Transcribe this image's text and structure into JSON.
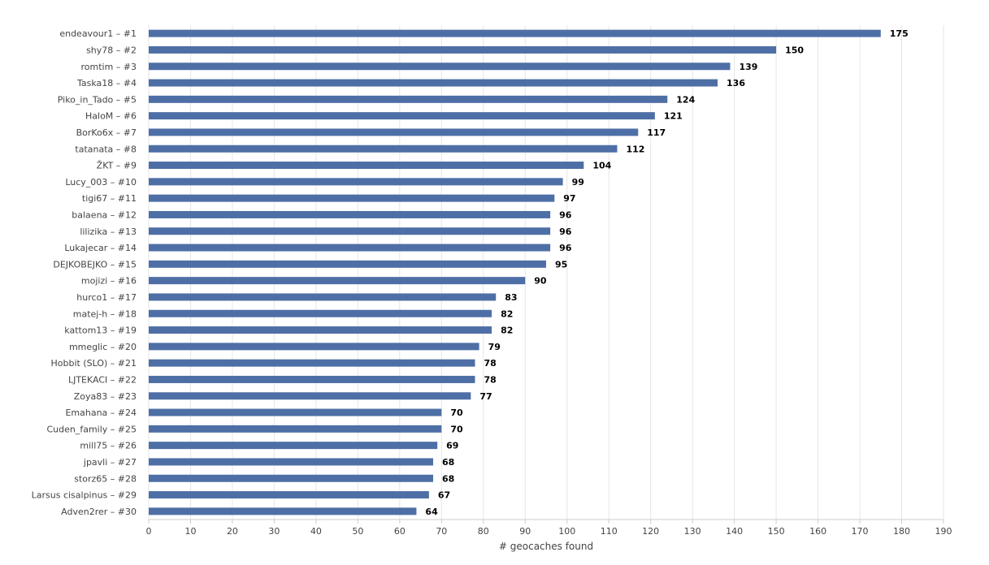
{
  "colors": {
    "bar": "#4e6fa6",
    "grid": "#e6e6e6",
    "axis": "#cccccc"
  },
  "chart_data": {
    "type": "bar",
    "orientation": "horizontal",
    "categories": [
      "endeavour1 – #1",
      "shy78 – #2",
      "romtim – #3",
      "Taska18 – #4",
      "Piko_in_Tado – #5",
      "HaloM – #6",
      "BorKo6x – #7",
      "tatanata – #8",
      "ŽKT – #9",
      "Lucy_003 – #10",
      "tigi67 – #11",
      "balaena – #12",
      "lilizika – #13",
      "Lukajecar – #14",
      "DEJKOBEJKO – #15",
      "mojizi – #16",
      "hurco1 – #17",
      "matej-h – #18",
      "kattom13 – #19",
      "mmeglic – #20",
      "Hobbit (SLO) – #21",
      "LJTEKACI – #22",
      "Zoya83 – #23",
      "Emahana – #24",
      "Cuden_family – #25",
      "mill75 – #26",
      "jpavli – #27",
      "storz65 – #28",
      "Larsus cisalpinus – #29",
      "Adven2rer – #30"
    ],
    "values": [
      175,
      150,
      139,
      136,
      124,
      121,
      117,
      112,
      104,
      99,
      97,
      96,
      96,
      96,
      95,
      90,
      83,
      82,
      82,
      79,
      78,
      78,
      77,
      70,
      70,
      69,
      68,
      68,
      67,
      64
    ],
    "xlabel": "# geocaches found",
    "ylabel": "",
    "title": "",
    "xlim": [
      0,
      190
    ],
    "xticks": [
      0,
      10,
      20,
      30,
      40,
      50,
      60,
      70,
      80,
      90,
      100,
      110,
      120,
      130,
      140,
      150,
      160,
      170,
      180,
      190
    ],
    "grid": true,
    "legend": "none"
  }
}
